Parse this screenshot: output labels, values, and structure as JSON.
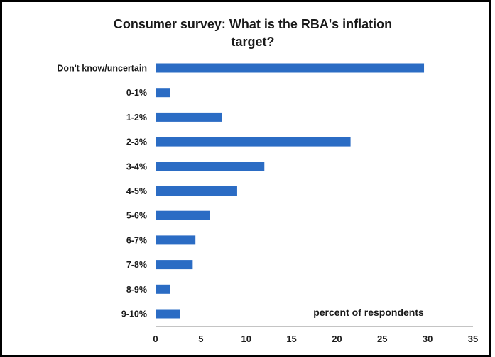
{
  "chart_data": {
    "type": "bar",
    "orientation": "horizontal",
    "title_line1": "Consumer survey: What is the RBA's inflation",
    "title_line2": "target?",
    "annotation": "percent of respondents",
    "categories": [
      "Don't know/uncertain",
      "0-1%",
      "1-2%",
      "2-3%",
      "3-4%",
      "4-5%",
      "5-6%",
      "6-7%",
      "7-8%",
      "8-9%",
      "9-10%"
    ],
    "values": [
      29.6,
      1.6,
      7.3,
      21.5,
      12.0,
      9.0,
      6.0,
      4.4,
      4.1,
      1.6,
      2.7
    ],
    "xlim": [
      0,
      35
    ],
    "xticks": [
      0,
      5,
      10,
      15,
      20,
      25,
      30,
      35
    ],
    "grid": false,
    "bar_color": "#2b6cc4"
  }
}
